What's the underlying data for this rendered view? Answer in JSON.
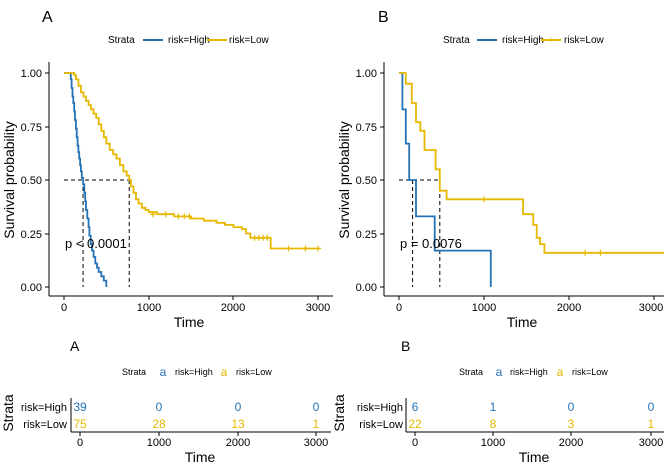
{
  "colors": {
    "high": "#2272B5",
    "low": "#E6B800",
    "axis": "#000000",
    "median": "#000000"
  },
  "panels": [
    {
      "label": "A",
      "legend": {
        "title": "Strata",
        "items": [
          "risk=High",
          "risk=Low"
        ]
      },
      "ylabel": "Survival probability",
      "xlabel": "Time",
      "pvalue": "p < 0.0001",
      "xticks": [
        0,
        1000,
        2000,
        3000
      ],
      "yticks": [
        "0.00",
        "0.25",
        "0.50",
        "0.75",
        "1.00"
      ]
    },
    {
      "label": "B",
      "legend": {
        "title": "Strata",
        "items": [
          "risk=High",
          "risk=Low"
        ]
      },
      "ylabel": "Survival probability",
      "xlabel": "Time",
      "pvalue": "p = 0.0076",
      "xticks": [
        0,
        1000,
        2000,
        3000
      ],
      "yticks": [
        "0.00",
        "0.25",
        "0.50",
        "0.75",
        "1.00"
      ]
    }
  ],
  "risk_tables": [
    {
      "label": "A",
      "legend": {
        "title": "Strata",
        "glyph": "a",
        "items": [
          "risk=High",
          "risk=Low"
        ]
      },
      "ylabel": "Strata",
      "xlabel": "Time",
      "rows": [
        {
          "name": "risk=High",
          "counts": [
            "39",
            "0",
            "0",
            "0"
          ]
        },
        {
          "name": "risk=Low",
          "counts": [
            "75",
            "28",
            "13",
            "1"
          ]
        }
      ],
      "xticks": [
        0,
        1000,
        2000,
        3000
      ]
    },
    {
      "label": "B",
      "legend": {
        "title": "Strata",
        "glyph": "a",
        "items": [
          "risk=High",
          "risk=Low"
        ]
      },
      "ylabel": "Strata",
      "xlabel": "Time",
      "rows": [
        {
          "name": "risk=High",
          "counts": [
            "6",
            "1",
            "0",
            "0"
          ]
        },
        {
          "name": "risk=Low",
          "counts": [
            "22",
            "8",
            "3",
            "1"
          ]
        }
      ],
      "xticks": [
        0,
        1000,
        2000,
        3000
      ]
    }
  ],
  "chart_data": [
    {
      "type": "line",
      "subtype": "kaplan-meier",
      "title": "A",
      "xlabel": "Time",
      "ylabel": "Survival probability",
      "xlim": [
        -180,
        3120
      ],
      "ylim": [
        0,
        1
      ],
      "pvalue": "p < 0.0001",
      "median_survival": {
        "risk=High": 225,
        "risk=Low": 770
      },
      "series": [
        {
          "name": "risk=High",
          "steps": [
            [
              0,
              1.0
            ],
            [
              70,
              1.0
            ],
            [
              80,
              0.97
            ],
            [
              90,
              0.93
            ],
            [
              100,
              0.89
            ],
            [
              110,
              0.86
            ],
            [
              120,
              0.82
            ],
            [
              130,
              0.78
            ],
            [
              140,
              0.74
            ],
            [
              150,
              0.7
            ],
            [
              160,
              0.66
            ],
            [
              170,
              0.63
            ],
            [
              180,
              0.6
            ],
            [
              190,
              0.57
            ],
            [
              200,
              0.54
            ],
            [
              210,
              0.51
            ],
            [
              225,
              0.48
            ],
            [
              240,
              0.44
            ],
            [
              250,
              0.4
            ],
            [
              260,
              0.36
            ],
            [
              275,
              0.32
            ],
            [
              290,
              0.28
            ],
            [
              300,
              0.24
            ],
            [
              315,
              0.2
            ],
            [
              330,
              0.17
            ],
            [
              350,
              0.14
            ],
            [
              370,
              0.11
            ],
            [
              390,
              0.09
            ],
            [
              410,
              0.07
            ],
            [
              440,
              0.05
            ],
            [
              470,
              0.03
            ],
            [
              500,
              0.0
            ]
          ],
          "censored": []
        },
        {
          "name": "risk=Low",
          "steps": [
            [
              0,
              1.0
            ],
            [
              100,
              1.0
            ],
            [
              120,
              0.99
            ],
            [
              140,
              0.97
            ],
            [
              170,
              0.94
            ],
            [
              200,
              0.91
            ],
            [
              230,
              0.89
            ],
            [
              260,
              0.87
            ],
            [
              290,
              0.85
            ],
            [
              320,
              0.83
            ],
            [
              350,
              0.81
            ],
            [
              380,
              0.79
            ],
            [
              410,
              0.76
            ],
            [
              440,
              0.73
            ],
            [
              470,
              0.7
            ],
            [
              500,
              0.67
            ],
            [
              540,
              0.64
            ],
            [
              580,
              0.62
            ],
            [
              620,
              0.6
            ],
            [
              660,
              0.57
            ],
            [
              700,
              0.54
            ],
            [
              740,
              0.52
            ],
            [
              770,
              0.5
            ],
            [
              790,
              0.47
            ],
            [
              820,
              0.44
            ],
            [
              850,
              0.41
            ],
            [
              880,
              0.39
            ],
            [
              920,
              0.37
            ],
            [
              960,
              0.36
            ],
            [
              1000,
              0.35
            ],
            [
              1100,
              0.34
            ],
            [
              1300,
              0.33
            ],
            [
              1500,
              0.32
            ],
            [
              1650,
              0.31
            ],
            [
              1800,
              0.3
            ],
            [
              1900,
              0.29
            ],
            [
              2000,
              0.28
            ],
            [
              2100,
              0.27
            ],
            [
              2150,
              0.25
            ],
            [
              2200,
              0.23
            ],
            [
              2420,
              0.23
            ],
            [
              2440,
              0.18
            ],
            [
              3000,
              0.18
            ]
          ],
          "censored": [
            [
              1050,
              0.34
            ],
            [
              1200,
              0.34
            ],
            [
              1350,
              0.33
            ],
            [
              1420,
              0.33
            ],
            [
              1480,
              0.33
            ],
            [
              2250,
              0.23
            ],
            [
              2300,
              0.23
            ],
            [
              2350,
              0.23
            ],
            [
              2400,
              0.23
            ],
            [
              2650,
              0.18
            ],
            [
              2850,
              0.18
            ],
            [
              3000,
              0.18
            ]
          ]
        }
      ]
    },
    {
      "type": "line",
      "subtype": "kaplan-meier",
      "title": "B",
      "xlabel": "Time",
      "ylabel": "Survival probability",
      "xlim": [
        -180,
        3120
      ],
      "ylim": [
        0,
        1
      ],
      "pvalue": "p = 0.0076",
      "median_survival": {
        "risk=High": 160,
        "risk=Low": 480
      },
      "series": [
        {
          "name": "risk=High",
          "steps": [
            [
              0,
              1.0
            ],
            [
              40,
              1.0
            ],
            [
              40,
              0.83
            ],
            [
              80,
              0.83
            ],
            [
              80,
              0.67
            ],
            [
              120,
              0.67
            ],
            [
              120,
              0.5
            ],
            [
              200,
              0.5
            ],
            [
              200,
              0.33
            ],
            [
              420,
              0.33
            ],
            [
              420,
              0.17
            ],
            [
              1080,
              0.17
            ],
            [
              1080,
              0.0
            ]
          ],
          "censored": []
        },
        {
          "name": "risk=Low",
          "steps": [
            [
              0,
              1.0
            ],
            [
              80,
              1.0
            ],
            [
              80,
              0.95
            ],
            [
              150,
              0.95
            ],
            [
              150,
              0.86
            ],
            [
              200,
              0.86
            ],
            [
              200,
              0.77
            ],
            [
              250,
              0.77
            ],
            [
              250,
              0.73
            ],
            [
              300,
              0.73
            ],
            [
              300,
              0.64
            ],
            [
              430,
              0.64
            ],
            [
              430,
              0.55
            ],
            [
              480,
              0.55
            ],
            [
              480,
              0.45
            ],
            [
              560,
              0.45
            ],
            [
              560,
              0.41
            ],
            [
              1460,
              0.41
            ],
            [
              1460,
              0.34
            ],
            [
              1580,
              0.34
            ],
            [
              1580,
              0.29
            ],
            [
              1620,
              0.29
            ],
            [
              1620,
              0.23
            ],
            [
              1660,
              0.23
            ],
            [
              1660,
              0.2
            ],
            [
              1710,
              0.2
            ],
            [
              1710,
              0.16
            ],
            [
              3120,
              0.16
            ]
          ],
          "censored": [
            [
              1000,
              0.41
            ],
            [
              2190,
              0.16
            ],
            [
              2370,
              0.16
            ]
          ]
        }
      ]
    }
  ]
}
